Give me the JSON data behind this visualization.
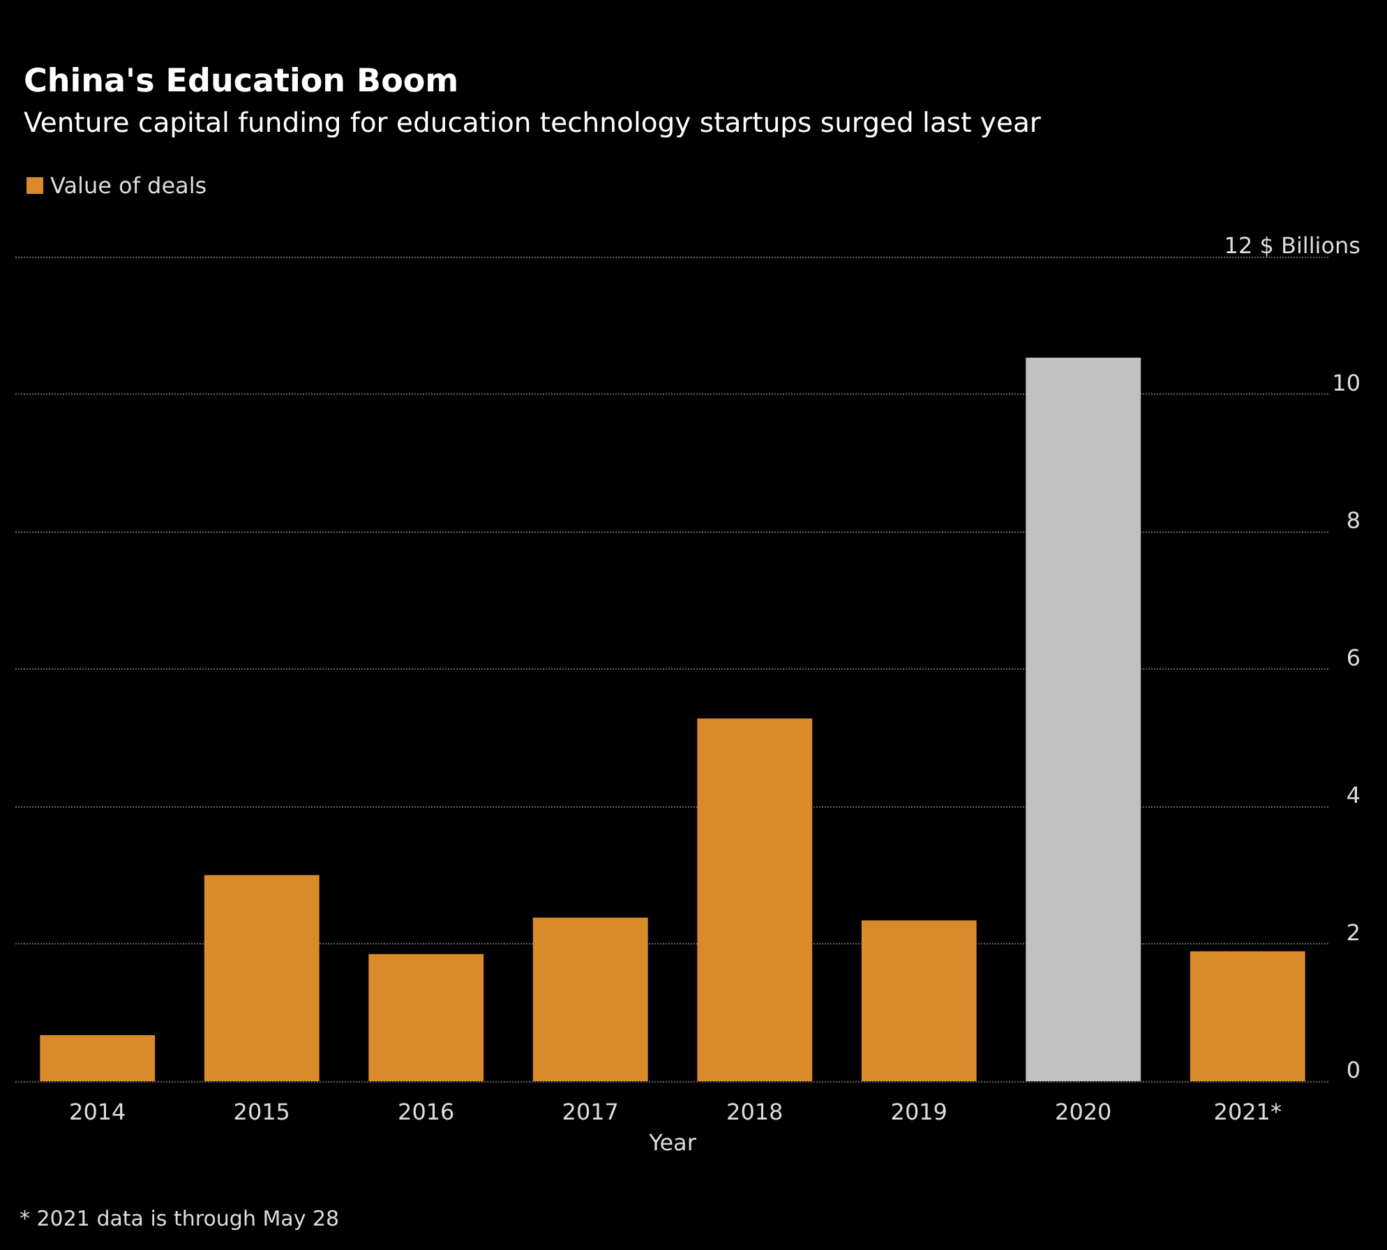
{
  "chart_data": {
    "type": "bar",
    "title": "China's Education Boom",
    "subtitle": "Venture capital funding for education technology startups surged last year",
    "xlabel": "Year",
    "categories": [
      "2014",
      "2015",
      "2016",
      "2017",
      "2018",
      "2019",
      "2020",
      "2021*"
    ],
    "series": [
      {
        "name": "Value of deals",
        "color": "#d98b2b",
        "colors": [
          "#d98b2b",
          "#d98b2b",
          "#d98b2b",
          "#d98b2b",
          "#d98b2b",
          "#d98b2b",
          "#c0c0c0",
          "#d98b2b"
        ],
        "values": [
          0.67,
          3.0,
          1.85,
          2.38,
          5.28,
          2.34,
          10.53,
          1.89
        ]
      }
    ],
    "ylim": [
      0,
      12
    ],
    "yticks": [
      0,
      2,
      4,
      6,
      8,
      10,
      {
        "value": 12,
        "label": "12 $ Billions"
      }
    ],
    "grid": "y",
    "legend": "top left",
    "annotations": [
      "* 2021 data is through May 28"
    ]
  }
}
